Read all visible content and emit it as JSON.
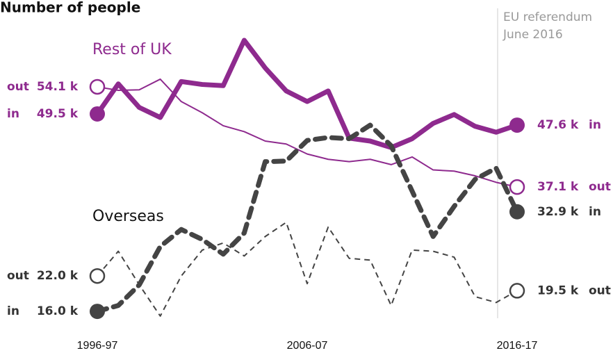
{
  "chart_data": {
    "type": "line",
    "title": "Number of people",
    "annotation": [
      "EU referendum",
      "June 2016"
    ],
    "groups": [
      "Rest of UK",
      "Overseas"
    ],
    "categories": [
      "1996-97",
      null,
      null,
      null,
      null,
      null,
      null,
      null,
      null,
      null,
      "2006-07",
      null,
      null,
      null,
      null,
      null,
      null,
      null,
      null,
      null,
      "2016-17"
    ],
    "ylim": [
      12,
      64
    ],
    "series": [
      {
        "group": 0,
        "name": "in",
        "color": "#8e2a8e",
        "weight": "heavy",
        "dashed": false,
        "marker": "filled",
        "values": [
          49.5,
          54.6,
          50.6,
          48.9,
          55.0,
          54.5,
          54.3,
          62.0,
          57.3,
          53.4,
          51.6,
          53.4,
          45.4,
          44.9,
          43.8,
          45.3,
          47.9,
          49.4,
          47.4,
          46.4,
          47.6
        ],
        "value_labels": [
          "49.5 k",
          null,
          null,
          null,
          null,
          null,
          null,
          null,
          null,
          null,
          null,
          null,
          null,
          null,
          null,
          null,
          null,
          null,
          null,
          null,
          "47.6 k"
        ]
      },
      {
        "group": 0,
        "name": "out",
        "color": "#8e2a8e",
        "weight": "light",
        "dashed": false,
        "marker": "hollow",
        "values": [
          54.1,
          53.5,
          53.6,
          55.4,
          51.6,
          49.7,
          47.5,
          46.5,
          44.9,
          44.4,
          42.7,
          41.8,
          41.4,
          41.8,
          40.9,
          42.2,
          40.0,
          39.8,
          39.0,
          37.9,
          37.1
        ],
        "value_labels": [
          "54.1 k",
          null,
          null,
          null,
          null,
          null,
          null,
          null,
          null,
          null,
          null,
          null,
          null,
          null,
          null,
          null,
          null,
          null,
          null,
          null,
          "37.1 k"
        ]
      },
      {
        "group": 1,
        "name": "in",
        "color": "#444444",
        "weight": "heavy",
        "dashed": true,
        "marker": "filled",
        "values": [
          16.0,
          17.0,
          20.5,
          27.0,
          29.9,
          28.2,
          25.7,
          29.3,
          41.4,
          41.5,
          45.0,
          45.5,
          45.3,
          47.6,
          44.1,
          36.4,
          28.7,
          33.8,
          38.4,
          40.3,
          32.9
        ],
        "value_labels": [
          "16.0 k",
          null,
          null,
          null,
          null,
          null,
          null,
          null,
          null,
          null,
          null,
          null,
          null,
          null,
          null,
          null,
          null,
          null,
          null,
          null,
          "32.9 k"
        ]
      },
      {
        "group": 1,
        "name": "out",
        "color": "#444444",
        "weight": "light",
        "dashed": true,
        "marker": "hollow",
        "values": [
          22.0,
          26.2,
          20.5,
          15.2,
          22.0,
          26.4,
          27.6,
          25.4,
          28.7,
          31.1,
          20.7,
          30.3,
          25.0,
          24.7,
          17.0,
          26.4,
          26.2,
          25.2,
          18.5,
          17.5,
          19.5
        ],
        "value_labels": [
          "22.0 k",
          null,
          null,
          null,
          null,
          null,
          null,
          null,
          null,
          null,
          null,
          null,
          null,
          null,
          null,
          null,
          null,
          null,
          null,
          null,
          "19.5 k"
        ]
      }
    ]
  }
}
